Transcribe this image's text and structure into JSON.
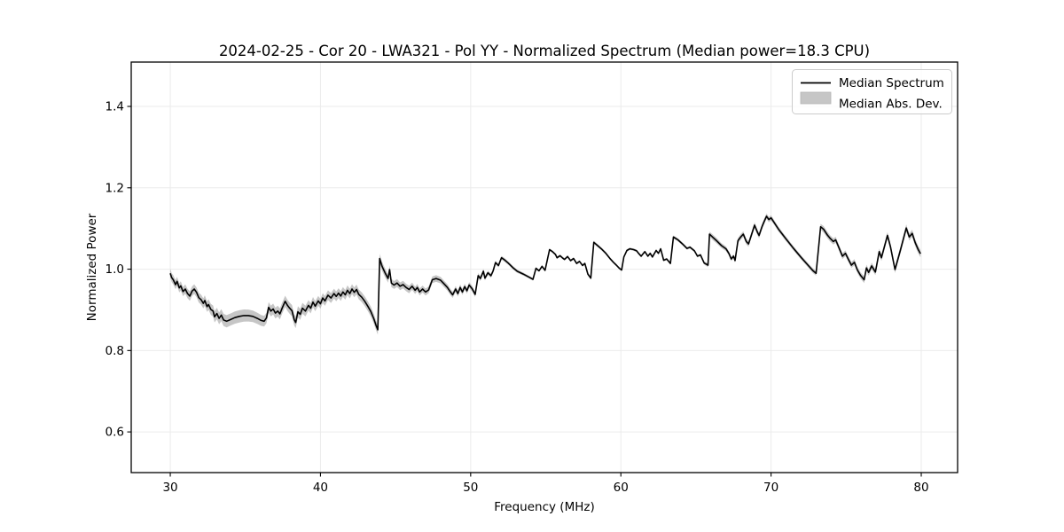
{
  "figure": {
    "kind": "matplotlib-line-plot"
  },
  "colors": {
    "line": "#000000",
    "band": "#808080",
    "band_opacity": 0.45,
    "grid": "#ebebeb",
    "spine": "#000000",
    "legend_border": "#cccccc",
    "background": "#ffffff"
  },
  "chart_data": {
    "type": "line",
    "title": "2024-02-25 - Cor 20 - LWA321 - Pol YY - Normalized Spectrum (Median power=18.3 CPU)",
    "xlabel": "Frequency (MHz)",
    "ylabel": "Normalized Power",
    "xlim": [
      27.4,
      82.42
    ],
    "ylim": [
      0.5,
      1.509
    ],
    "grid": true,
    "xticks": [
      {
        "v": 30,
        "label": "30"
      },
      {
        "v": 40,
        "label": "40"
      },
      {
        "v": 50,
        "label": "50"
      },
      {
        "v": 60,
        "label": "60"
      },
      {
        "v": 70,
        "label": "70"
      },
      {
        "v": 80,
        "label": "80"
      }
    ],
    "yticks": [
      {
        "v": 0.6,
        "label": "0.6"
      },
      {
        "v": 0.8,
        "label": "0.8"
      },
      {
        "v": 1.0,
        "label": "1.0"
      },
      {
        "v": 1.2,
        "label": "1.2"
      },
      {
        "v": 1.4,
        "label": "1.4"
      }
    ],
    "legend": {
      "position": "upper right",
      "items": [
        {
          "label": "Median Spectrum",
          "type": "line"
        },
        {
          "label": "Median Abs. Dev.",
          "type": "patch"
        }
      ]
    },
    "series": [
      {
        "name": "Median Spectrum",
        "style": "line",
        "points": [
          [
            30.0,
            0.99
          ],
          [
            30.1,
            0.979
          ],
          [
            30.2,
            0.974
          ],
          [
            30.35,
            0.962
          ],
          [
            30.45,
            0.97
          ],
          [
            30.6,
            0.954
          ],
          [
            30.7,
            0.959
          ],
          [
            30.85,
            0.945
          ],
          [
            31.0,
            0.951
          ],
          [
            31.15,
            0.94
          ],
          [
            31.3,
            0.934
          ],
          [
            31.45,
            0.946
          ],
          [
            31.6,
            0.951
          ],
          [
            31.75,
            0.943
          ],
          [
            31.9,
            0.93
          ],
          [
            32.05,
            0.925
          ],
          [
            32.2,
            0.916
          ],
          [
            32.3,
            0.923
          ],
          [
            32.45,
            0.908
          ],
          [
            32.55,
            0.913
          ],
          [
            32.7,
            0.901
          ],
          [
            32.85,
            0.897
          ],
          [
            32.95,
            0.883
          ],
          [
            33.1,
            0.891
          ],
          [
            33.25,
            0.879
          ],
          [
            33.4,
            0.887
          ],
          [
            33.55,
            0.875
          ],
          [
            33.75,
            0.872
          ],
          [
            34.0,
            0.876
          ],
          [
            34.3,
            0.881
          ],
          [
            34.6,
            0.884
          ],
          [
            34.9,
            0.886
          ],
          [
            35.2,
            0.886
          ],
          [
            35.5,
            0.884
          ],
          [
            35.8,
            0.879
          ],
          [
            36.05,
            0.874
          ],
          [
            36.25,
            0.872
          ],
          [
            36.4,
            0.88
          ],
          [
            36.55,
            0.906
          ],
          [
            36.7,
            0.897
          ],
          [
            36.85,
            0.902
          ],
          [
            37.0,
            0.892
          ],
          [
            37.15,
            0.897
          ],
          [
            37.3,
            0.89
          ],
          [
            37.45,
            0.904
          ],
          [
            37.65,
            0.921
          ],
          [
            37.8,
            0.911
          ],
          [
            37.95,
            0.904
          ],
          [
            38.1,
            0.898
          ],
          [
            38.25,
            0.876
          ],
          [
            38.35,
            0.869
          ],
          [
            38.5,
            0.895
          ],
          [
            38.65,
            0.889
          ],
          [
            38.8,
            0.904
          ],
          [
            39.0,
            0.897
          ],
          [
            39.2,
            0.911
          ],
          [
            39.35,
            0.904
          ],
          [
            39.5,
            0.919
          ],
          [
            39.65,
            0.909
          ],
          [
            39.85,
            0.922
          ],
          [
            40.0,
            0.915
          ],
          [
            40.15,
            0.929
          ],
          [
            40.3,
            0.922
          ],
          [
            40.5,
            0.936
          ],
          [
            40.7,
            0.929
          ],
          [
            40.9,
            0.94
          ],
          [
            41.05,
            0.933
          ],
          [
            41.2,
            0.941
          ],
          [
            41.35,
            0.934
          ],
          [
            41.5,
            0.944
          ],
          [
            41.65,
            0.937
          ],
          [
            41.8,
            0.948
          ],
          [
            41.95,
            0.94
          ],
          [
            42.1,
            0.951
          ],
          [
            42.25,
            0.943
          ],
          [
            42.4,
            0.95
          ],
          [
            42.55,
            0.938
          ],
          [
            42.75,
            0.931
          ],
          [
            42.95,
            0.921
          ],
          [
            43.15,
            0.909
          ],
          [
            43.35,
            0.896
          ],
          [
            43.55,
            0.878
          ],
          [
            43.7,
            0.862
          ],
          [
            43.82,
            0.851
          ],
          [
            43.94,
            1.026
          ],
          [
            44.1,
            1.007
          ],
          [
            44.3,
            0.991
          ],
          [
            44.5,
            0.977
          ],
          [
            44.6,
            0.999
          ],
          [
            44.72,
            0.966
          ],
          [
            44.9,
            0.961
          ],
          [
            45.1,
            0.966
          ],
          [
            45.3,
            0.958
          ],
          [
            45.5,
            0.962
          ],
          [
            45.7,
            0.955
          ],
          [
            45.9,
            0.95
          ],
          [
            46.1,
            0.958
          ],
          [
            46.3,
            0.948
          ],
          [
            46.45,
            0.955
          ],
          [
            46.6,
            0.944
          ],
          [
            46.8,
            0.951
          ],
          [
            47.0,
            0.944
          ],
          [
            47.2,
            0.949
          ],
          [
            47.45,
            0.974
          ],
          [
            47.7,
            0.977
          ],
          [
            48.0,
            0.973
          ],
          [
            48.2,
            0.965
          ],
          [
            48.45,
            0.955
          ],
          [
            48.65,
            0.944
          ],
          [
            48.8,
            0.937
          ],
          [
            49.0,
            0.951
          ],
          [
            49.15,
            0.94
          ],
          [
            49.3,
            0.955
          ],
          [
            49.45,
            0.944
          ],
          [
            49.6,
            0.957
          ],
          [
            49.75,
            0.947
          ],
          [
            49.9,
            0.961
          ],
          [
            50.1,
            0.952
          ],
          [
            50.3,
            0.938
          ],
          [
            50.5,
            0.984
          ],
          [
            50.65,
            0.977
          ],
          [
            50.85,
            0.995
          ],
          [
            50.95,
            0.978
          ],
          [
            51.15,
            0.991
          ],
          [
            51.35,
            0.984
          ],
          [
            51.5,
            0.996
          ],
          [
            51.65,
            1.016
          ],
          [
            51.85,
            1.009
          ],
          [
            52.05,
            1.028
          ],
          [
            52.25,
            1.023
          ],
          [
            52.5,
            1.015
          ],
          [
            52.8,
            1.004
          ],
          [
            53.1,
            0.995
          ],
          [
            53.5,
            0.988
          ],
          [
            53.9,
            0.98
          ],
          [
            54.15,
            0.975
          ],
          [
            54.35,
            1.002
          ],
          [
            54.55,
            0.996
          ],
          [
            54.75,
            1.007
          ],
          [
            54.95,
            0.997
          ],
          [
            55.25,
            1.048
          ],
          [
            55.45,
            1.043
          ],
          [
            55.65,
            1.036
          ],
          [
            55.75,
            1.028
          ],
          [
            55.95,
            1.033
          ],
          [
            56.1,
            1.028
          ],
          [
            56.25,
            1.024
          ],
          [
            56.45,
            1.031
          ],
          [
            56.65,
            1.021
          ],
          [
            56.85,
            1.026
          ],
          [
            57.05,
            1.014
          ],
          [
            57.25,
            1.019
          ],
          [
            57.45,
            1.009
          ],
          [
            57.6,
            1.014
          ],
          [
            57.8,
            0.988
          ],
          [
            58.0,
            0.978
          ],
          [
            58.2,
            1.066
          ],
          [
            58.45,
            1.058
          ],
          [
            58.7,
            1.05
          ],
          [
            59.0,
            1.039
          ],
          [
            59.3,
            1.025
          ],
          [
            59.5,
            1.017
          ],
          [
            59.7,
            1.01
          ],
          [
            59.9,
            1.002
          ],
          [
            60.05,
            0.998
          ],
          [
            60.2,
            1.03
          ],
          [
            60.4,
            1.046
          ],
          [
            60.6,
            1.05
          ],
          [
            60.85,
            1.048
          ],
          [
            61.05,
            1.045
          ],
          [
            61.2,
            1.038
          ],
          [
            61.35,
            1.032
          ],
          [
            61.6,
            1.043
          ],
          [
            61.8,
            1.032
          ],
          [
            61.95,
            1.039
          ],
          [
            62.1,
            1.03
          ],
          [
            62.35,
            1.046
          ],
          [
            62.5,
            1.039
          ],
          [
            62.65,
            1.05
          ],
          [
            62.85,
            1.022
          ],
          [
            63.05,
            1.025
          ],
          [
            63.3,
            1.014
          ],
          [
            63.5,
            1.079
          ],
          [
            63.8,
            1.072
          ],
          [
            64.1,
            1.062
          ],
          [
            64.4,
            1.051
          ],
          [
            64.6,
            1.054
          ],
          [
            64.9,
            1.045
          ],
          [
            65.1,
            1.032
          ],
          [
            65.3,
            1.035
          ],
          [
            65.55,
            1.015
          ],
          [
            65.8,
            1.01
          ],
          [
            65.9,
            1.086
          ],
          [
            66.1,
            1.079
          ],
          [
            66.4,
            1.069
          ],
          [
            66.7,
            1.058
          ],
          [
            67.0,
            1.05
          ],
          [
            67.2,
            1.038
          ],
          [
            67.35,
            1.025
          ],
          [
            67.5,
            1.032
          ],
          [
            67.6,
            1.021
          ],
          [
            67.8,
            1.07
          ],
          [
            68.0,
            1.08
          ],
          [
            68.15,
            1.086
          ],
          [
            68.35,
            1.068
          ],
          [
            68.5,
            1.062
          ],
          [
            68.7,
            1.085
          ],
          [
            68.9,
            1.108
          ],
          [
            69.1,
            1.09
          ],
          [
            69.2,
            1.083
          ],
          [
            69.4,
            1.105
          ],
          [
            69.55,
            1.118
          ],
          [
            69.7,
            1.13
          ],
          [
            69.85,
            1.122
          ],
          [
            70.0,
            1.126
          ],
          [
            70.2,
            1.115
          ],
          [
            70.5,
            1.098
          ],
          [
            71.0,
            1.074
          ],
          [
            71.5,
            1.051
          ],
          [
            72.0,
            1.029
          ],
          [
            72.5,
            1.008
          ],
          [
            72.8,
            0.996
          ],
          [
            73.0,
            0.99
          ],
          [
            73.3,
            1.104
          ],
          [
            73.5,
            1.098
          ],
          [
            73.75,
            1.084
          ],
          [
            73.95,
            1.075
          ],
          [
            74.15,
            1.068
          ],
          [
            74.3,
            1.072
          ],
          [
            74.55,
            1.05
          ],
          [
            74.75,
            1.032
          ],
          [
            74.95,
            1.039
          ],
          [
            75.15,
            1.024
          ],
          [
            75.35,
            1.01
          ],
          [
            75.55,
            1.017
          ],
          [
            75.75,
            0.998
          ],
          [
            75.95,
            0.985
          ],
          [
            76.2,
            0.974
          ],
          [
            76.35,
            1.003
          ],
          [
            76.5,
            0.992
          ],
          [
            76.7,
            1.008
          ],
          [
            76.95,
            0.993
          ],
          [
            77.2,
            1.043
          ],
          [
            77.35,
            1.028
          ],
          [
            77.75,
            1.083
          ],
          [
            77.95,
            1.055
          ],
          [
            78.25,
            0.999
          ],
          [
            78.6,
            1.045
          ],
          [
            79.0,
            1.101
          ],
          [
            79.2,
            1.079
          ],
          [
            79.4,
            1.088
          ],
          [
            79.6,
            1.065
          ],
          [
            79.8,
            1.048
          ],
          [
            79.95,
            1.038
          ]
        ]
      },
      {
        "name": "Median Abs. Dev.",
        "style": "band_halfwidth",
        "points": [
          [
            30,
            0.011
          ],
          [
            32,
            0.012
          ],
          [
            33.5,
            0.015
          ],
          [
            35,
            0.015
          ],
          [
            36.3,
            0.013
          ],
          [
            38.3,
            0.014
          ],
          [
            40,
            0.012
          ],
          [
            43,
            0.012
          ],
          [
            43.9,
            0.012
          ],
          [
            44.5,
            0.01
          ],
          [
            46,
            0.009
          ],
          [
            48,
            0.008
          ],
          [
            50,
            0.007
          ],
          [
            51.5,
            0.005
          ],
          [
            53,
            0.004
          ],
          [
            54.5,
            0.003
          ],
          [
            57.5,
            0.003
          ],
          [
            58.2,
            0.004
          ],
          [
            59.5,
            0.003
          ],
          [
            63,
            0.003
          ],
          [
            63.6,
            0.004
          ],
          [
            65.5,
            0.003
          ],
          [
            66,
            0.007
          ],
          [
            67.5,
            0.005
          ],
          [
            68,
            0.007
          ],
          [
            69.5,
            0.007
          ],
          [
            70.2,
            0.006
          ],
          [
            72,
            0.005
          ],
          [
            73,
            0.006
          ],
          [
            73.4,
            0.008
          ],
          [
            75,
            0.007
          ],
          [
            76.2,
            0.008
          ],
          [
            77.8,
            0.008
          ],
          [
            79,
            0.009
          ],
          [
            79.95,
            0.009
          ]
        ]
      }
    ]
  }
}
